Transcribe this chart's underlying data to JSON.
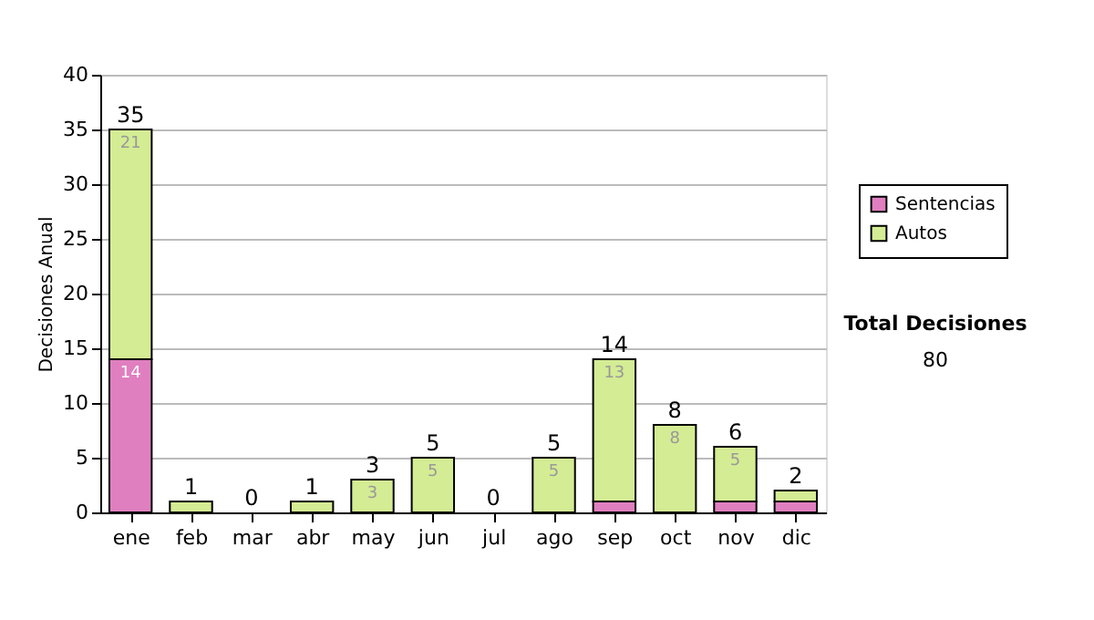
{
  "chart_data": {
    "type": "bar",
    "stacked": true,
    "ylabel": "Decisiones Anual",
    "categories": [
      "ene",
      "feb",
      "mar",
      "abr",
      "may",
      "jun",
      "jul",
      "ago",
      "sep",
      "oct",
      "nov",
      "dic"
    ],
    "series": [
      {
        "name": "Sentencias",
        "color": "#e07fc0",
        "values": [
          14,
          0,
          0,
          0,
          0,
          0,
          0,
          0,
          1,
          0,
          1,
          1
        ],
        "value_labels": [
          "14",
          null,
          null,
          null,
          null,
          null,
          null,
          null,
          null,
          null,
          null,
          null
        ]
      },
      {
        "name": "Autos",
        "color": "#d4ec94",
        "values": [
          21,
          1,
          0,
          1,
          3,
          5,
          0,
          5,
          13,
          8,
          5,
          1
        ],
        "value_labels": [
          "21",
          null,
          null,
          null,
          "3",
          "5",
          null,
          "5",
          "13",
          "8",
          "5",
          null
        ]
      }
    ],
    "totals": [
      "35",
      "1",
      "0",
      "1",
      "3",
      "5",
      "0",
      "5",
      "14",
      "8",
      "6",
      "2"
    ],
    "ylim": [
      0,
      40
    ],
    "yticks": [
      0,
      5,
      10,
      15,
      20,
      25,
      30,
      35,
      40
    ],
    "grid": "y",
    "legend": "right",
    "annotations": [
      "Total Decisiones",
      "80"
    ]
  }
}
